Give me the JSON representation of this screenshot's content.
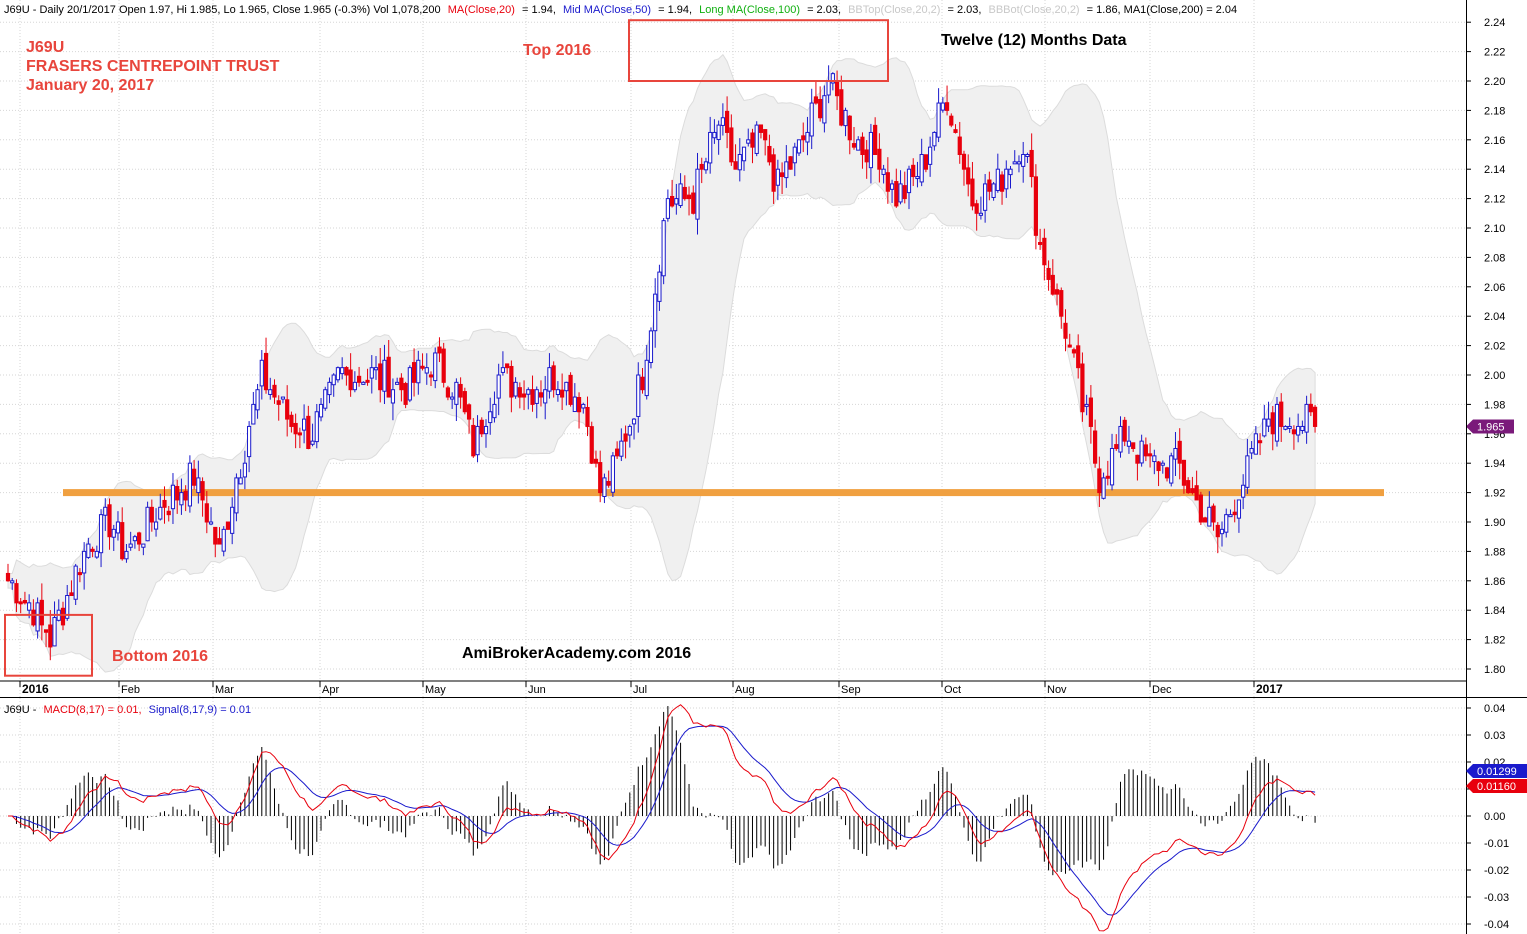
{
  "header": {
    "symbol_line": "J69U - Daily 20/1/2017 Open 1.97, Hi 1.985, Lo 1.965, Close 1.965 (-0.3%) Vol 1,078,200",
    "ma20_label": "MA(Close,20)",
    "ma20_value": "= 1.94,",
    "ma50_label": "Mid MA(Close,50)",
    "ma50_value": "= 1.94,",
    "ma100_label": "Long MA(Close,100)",
    "ma100_value": "= 2.03,",
    "bbtop_label": "BBTop(Close,20,2)",
    "bbtop_value": "= 2.03,",
    "bbbot_label": "BBBot(Close,20,2)",
    "bbbot_value": "= 1.86, MA1(Close,200) = 2.04"
  },
  "annotations": {
    "ticker": "J69U",
    "company": "FRASERS CENTREPOINT TRUST",
    "date": "January 20, 2017",
    "top_label": "Top 2016",
    "bottom_label": "Bottom 2016",
    "months_note": "Twelve (12) Months Data",
    "watermark": "AmiBrokerAcademy.com  2016"
  },
  "macd_header": {
    "symbol": "J69U -",
    "macd_label": "MACD(8,17) = 0.01,",
    "signal_label": "Signal(8,17,9) = 0.01"
  },
  "colors": {
    "up_candle": "#1a1acc",
    "down_candle": "#e8000d",
    "bollinger_fill": "#f0f0f0",
    "support_line": "#f0a040",
    "annotation_red": "#e8453c",
    "macd_line": "#e8000d",
    "signal_line": "#1a1acc",
    "last_price_badge": "#7a1a7a"
  },
  "chart_data": [
    {
      "type": "candlestick",
      "title": "J69U FRASERS CENTREPOINT TRUST",
      "ylim": [
        1.79,
        2.25
      ],
      "yticks": [
        1.8,
        1.82,
        1.84,
        1.86,
        1.88,
        1.9,
        1.92,
        1.94,
        1.96,
        1.98,
        2.0,
        2.02,
        2.04,
        2.06,
        2.08,
        2.1,
        2.12,
        2.14,
        2.16,
        2.18,
        2.2,
        2.22,
        2.24
      ],
      "month_labels": [
        "2016",
        "Feb",
        "Mar",
        "Apr",
        "May",
        "Jun",
        "Jul",
        "Aug",
        "Sep",
        "Oct",
        "Nov",
        "Dec",
        "2017"
      ],
      "bold_labels": [
        "2016",
        "2017"
      ],
      "last_close": 1.965,
      "last_close_label": "1.965",
      "support_level": 1.92,
      "top_box": {
        "price_from": 2.2,
        "price_to": 2.24
      },
      "bottom_box": {
        "price_from": 1.79,
        "price_to": 1.83
      },
      "close_anchors": [
        [
          0,
          1.86
        ],
        [
          6,
          1.84
        ],
        [
          10,
          1.82
        ],
        [
          18,
          1.88
        ],
        [
          24,
          1.9
        ],
        [
          28,
          1.88
        ],
        [
          36,
          1.91
        ],
        [
          44,
          1.93
        ],
        [
          50,
          1.88
        ],
        [
          54,
          1.93
        ],
        [
          60,
          2.0
        ],
        [
          66,
          1.97
        ],
        [
          72,
          1.96
        ],
        [
          78,
          2.0
        ],
        [
          86,
          2.0
        ],
        [
          94,
          1.99
        ],
        [
          100,
          2.01
        ],
        [
          106,
          1.99
        ],
        [
          110,
          1.95
        ],
        [
          116,
          2.0
        ],
        [
          124,
          1.99
        ],
        [
          130,
          2.0
        ],
        [
          136,
          1.98
        ],
        [
          140,
          1.92
        ],
        [
          144,
          1.94
        ],
        [
          150,
          2.0
        ],
        [
          156,
          2.12
        ],
        [
          162,
          2.12
        ],
        [
          168,
          2.17
        ],
        [
          172,
          2.14
        ],
        [
          178,
          2.16
        ],
        [
          182,
          2.13
        ],
        [
          188,
          2.16
        ],
        [
          194,
          2.2
        ],
        [
          200,
          2.16
        ],
        [
          206,
          2.15
        ],
        [
          210,
          2.12
        ],
        [
          216,
          2.14
        ],
        [
          222,
          2.19
        ],
        [
          228,
          2.12
        ],
        [
          234,
          2.13
        ],
        [
          240,
          2.16
        ],
        [
          244,
          2.09
        ],
        [
          250,
          2.03
        ],
        [
          254,
          1.98
        ],
        [
          258,
          1.93
        ],
        [
          264,
          1.96
        ],
        [
          270,
          1.94
        ],
        [
          276,
          1.94
        ],
        [
          282,
          1.91
        ],
        [
          286,
          1.89
        ],
        [
          292,
          1.93
        ],
        [
          298,
          1.97
        ],
        [
          304,
          1.97
        ],
        [
          309,
          1.965
        ]
      ]
    },
    {
      "type": "macd",
      "title": "MACD(8,17) Signal(8,17,9)",
      "ylim": [
        -0.043,
        0.043
      ],
      "yticks": [
        0.04,
        0.03,
        0.02,
        0.01,
        0.0,
        -0.01,
        -0.02,
        -0.03,
        -0.04
      ],
      "ytick_labels": [
        "0.04",
        "0.03",
        "0.02",
        "0.01",
        "0.00",
        "-0.01",
        "-0.02",
        "-0.03",
        "-0.04"
      ],
      "macd_last_label": "0.01160",
      "signal_last_label": "0.01299"
    }
  ]
}
